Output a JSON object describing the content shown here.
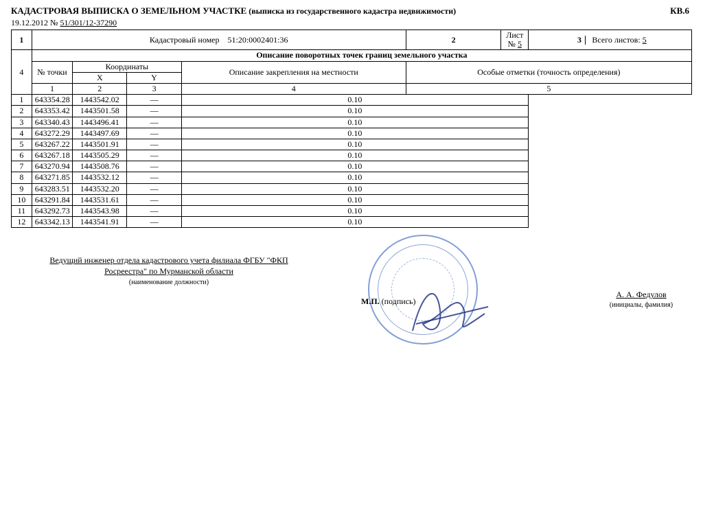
{
  "header": {
    "title_main": "КАДАСТРОВАЯ ВЫПИСКА О  ЗЕМЕЛЬНОМ УЧАСТКЕ",
    "title_sub": "(выписка из государственного кадастра недвижимости)",
    "page_code": "КВ.6",
    "date": "19.12.2012",
    "doc_no_prefix": "№ ",
    "doc_no": "51/301/12-37290"
  },
  "section1": {
    "n1": "1",
    "cad_label": "Кадастровый номер",
    "cad_value": "51:20:0002401:36",
    "n2": "2",
    "sheet_label": "Лист № ",
    "sheet_no": "5",
    "n3": "3",
    "total_label": "Всего листов: ",
    "total_no": "5"
  },
  "section_desc": "Описание поворотных точек границ земельного участка",
  "table": {
    "headers": {
      "point": "№ точки",
      "coords": "Координаты",
      "x": "X",
      "y": "Y",
      "fix_desc": "Описание закрепления на местности",
      "notes": "Особые отметки (точность определения)"
    },
    "col_numbers": [
      "1",
      "2",
      "3",
      "4",
      "5"
    ],
    "left_section_no": "4",
    "rows": [
      {
        "n": "1",
        "x": "643354.28",
        "y": "1443542.02",
        "d": "—",
        "p": "0.10"
      },
      {
        "n": "2",
        "x": "643353.42",
        "y": "1443501.58",
        "d": "—",
        "p": "0.10"
      },
      {
        "n": "3",
        "x": "643340.43",
        "y": "1443496.41",
        "d": "—",
        "p": "0.10"
      },
      {
        "n": "4",
        "x": "643272.29",
        "y": "1443497.69",
        "d": "—",
        "p": "0.10"
      },
      {
        "n": "5",
        "x": "643267.22",
        "y": "1443501.91",
        "d": "—",
        "p": "0.10"
      },
      {
        "n": "6",
        "x": "643267.18",
        "y": "1443505.29",
        "d": "—",
        "p": "0.10"
      },
      {
        "n": "7",
        "x": "643270.94",
        "y": "1443508.76",
        "d": "—",
        "p": "0.10"
      },
      {
        "n": "8",
        "x": "643271.85",
        "y": "1443532.12",
        "d": "—",
        "p": "0.10"
      },
      {
        "n": "9",
        "x": "643283.51",
        "y": "1443532.20",
        "d": "—",
        "p": "0.10"
      },
      {
        "n": "10",
        "x": "643291.84",
        "y": "1443531.61",
        "d": "—",
        "p": "0.10"
      },
      {
        "n": "11",
        "x": "643292.73",
        "y": "1443543.98",
        "d": "—",
        "p": "0.10"
      },
      {
        "n": "12",
        "x": "643342.13",
        "y": "1443541.91",
        "d": "—",
        "p": "0.10"
      }
    ],
    "col_widths_pct": [
      3,
      6,
      8,
      8,
      33,
      42
    ],
    "border_color": "#000000",
    "font_size_pt": 9
  },
  "footer": {
    "role_line1": "Ведущий инженер отдела кадастрового учета филиала ФГБУ \"ФКП",
    "role_line2": "Росреестра\" по Мурманской области",
    "role_caption": "(наименование должности)",
    "mp_label_bold": "М.П.",
    "mp_label_rest": " (подпись)",
    "name": "А. А. Федулов",
    "name_caption": "(инициалы, фамилия)",
    "stamp_color": "#5b7fc7",
    "signature_color": "#1a2a80"
  },
  "colors": {
    "text": "#000000",
    "background": "#ffffff"
  }
}
